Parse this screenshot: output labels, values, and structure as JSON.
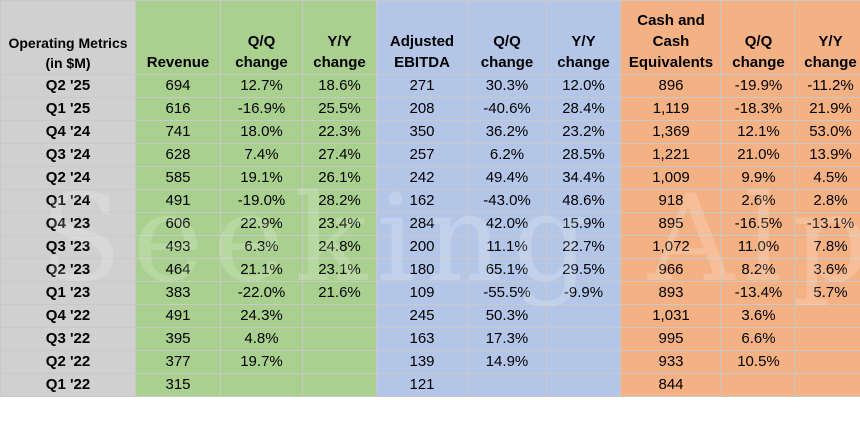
{
  "header": {
    "metrics_label": "Operating Metrics (in $M)",
    "revenue": "Revenue",
    "rev_qq": "Q/Q change",
    "rev_yy": "Y/Y change",
    "ebitda": "Adjusted EBITDA",
    "ebitda_qq": "Q/Q change",
    "ebitda_yy": "Y/Y change",
    "cash": "Cash and Cash Equivalents",
    "cash_qq": "Q/Q change",
    "cash_yy": "Y/Y change"
  },
  "rows": [
    {
      "q": "Q2 '25",
      "rev": "694",
      "rev_qq": "12.7%",
      "rev_yy": "18.6%",
      "ebitda": "271",
      "eb_qq": "30.3%",
      "eb_yy": "12.0%",
      "cash": "896",
      "cash_qq": "-19.9%",
      "cash_yy": "-11.2%"
    },
    {
      "q": "Q1 '25",
      "rev": "616",
      "rev_qq": "-16.9%",
      "rev_yy": "25.5%",
      "ebitda": "208",
      "eb_qq": "-40.6%",
      "eb_yy": "28.4%",
      "cash": "1,119",
      "cash_qq": "-18.3%",
      "cash_yy": "21.9%"
    },
    {
      "q": "Q4 '24",
      "rev": "741",
      "rev_qq": "18.0%",
      "rev_yy": "22.3%",
      "ebitda": "350",
      "eb_qq": "36.2%",
      "eb_yy": "23.2%",
      "cash": "1,369",
      "cash_qq": "12.1%",
      "cash_yy": "53.0%"
    },
    {
      "q": "Q3 '24",
      "rev": "628",
      "rev_qq": "7.4%",
      "rev_yy": "27.4%",
      "ebitda": "257",
      "eb_qq": "6.2%",
      "eb_yy": "28.5%",
      "cash": "1,221",
      "cash_qq": "21.0%",
      "cash_yy": "13.9%"
    },
    {
      "q": "Q2 '24",
      "rev": "585",
      "rev_qq": "19.1%",
      "rev_yy": "26.1%",
      "ebitda": "242",
      "eb_qq": "49.4%",
      "eb_yy": "34.4%",
      "cash": "1,009",
      "cash_qq": "9.9%",
      "cash_yy": "4.5%"
    },
    {
      "q": "Q1 '24",
      "rev": "491",
      "rev_qq": "-19.0%",
      "rev_yy": "28.2%",
      "ebitda": "162",
      "eb_qq": "-43.0%",
      "eb_yy": "48.6%",
      "cash": "918",
      "cash_qq": "2.6%",
      "cash_yy": "2.8%"
    },
    {
      "q": "Q4 '23",
      "rev": "606",
      "rev_qq": "22.9%",
      "rev_yy": "23.4%",
      "ebitda": "284",
      "eb_qq": "42.0%",
      "eb_yy": "15.9%",
      "cash": "895",
      "cash_qq": "-16.5%",
      "cash_yy": "-13.1%"
    },
    {
      "q": "Q3 '23",
      "rev": "493",
      "rev_qq": "6.3%",
      "rev_yy": "24.8%",
      "ebitda": "200",
      "eb_qq": "11.1%",
      "eb_yy": "22.7%",
      "cash": "1,072",
      "cash_qq": "11.0%",
      "cash_yy": "7.8%"
    },
    {
      "q": "Q2 '23",
      "rev": "464",
      "rev_qq": "21.1%",
      "rev_yy": "23.1%",
      "ebitda": "180",
      "eb_qq": "65.1%",
      "eb_yy": "29.5%",
      "cash": "966",
      "cash_qq": "8.2%",
      "cash_yy": "3.6%"
    },
    {
      "q": "Q1 '23",
      "rev": "383",
      "rev_qq": "-22.0%",
      "rev_yy": "21.6%",
      "ebitda": "109",
      "eb_qq": "-55.5%",
      "eb_yy": "-9.9%",
      "cash": "893",
      "cash_qq": "-13.4%",
      "cash_yy": "5.7%"
    },
    {
      "q": "Q4 '22",
      "rev": "491",
      "rev_qq": "24.3%",
      "rev_yy": "",
      "ebitda": "245",
      "eb_qq": "50.3%",
      "eb_yy": "",
      "cash": "1,031",
      "cash_qq": "3.6%",
      "cash_yy": ""
    },
    {
      "q": "Q3 '22",
      "rev": "395",
      "rev_qq": "4.8%",
      "rev_yy": "",
      "ebitda": "163",
      "eb_qq": "17.3%",
      "eb_yy": "",
      "cash": "995",
      "cash_qq": "6.6%",
      "cash_yy": ""
    },
    {
      "q": "Q2 '22",
      "rev": "377",
      "rev_qq": "19.7%",
      "rev_yy": "",
      "ebitda": "139",
      "eb_qq": "14.9%",
      "eb_yy": "",
      "cash": "933",
      "cash_qq": "10.5%",
      "cash_yy": ""
    },
    {
      "q": "Q1 '22",
      "rev": "315",
      "rev_qq": "",
      "rev_yy": "",
      "ebitda": "121",
      "eb_qq": "",
      "eb_yy": "",
      "cash": "844",
      "cash_qq": "",
      "cash_yy": ""
    }
  ],
  "watermark": "Seeking Alpha",
  "colors": {
    "label_bg": "#d0d0d0",
    "revenue_bg": "#a9d08e",
    "ebitda_bg": "#b4c6e7",
    "cash_bg": "#f4b183"
  }
}
